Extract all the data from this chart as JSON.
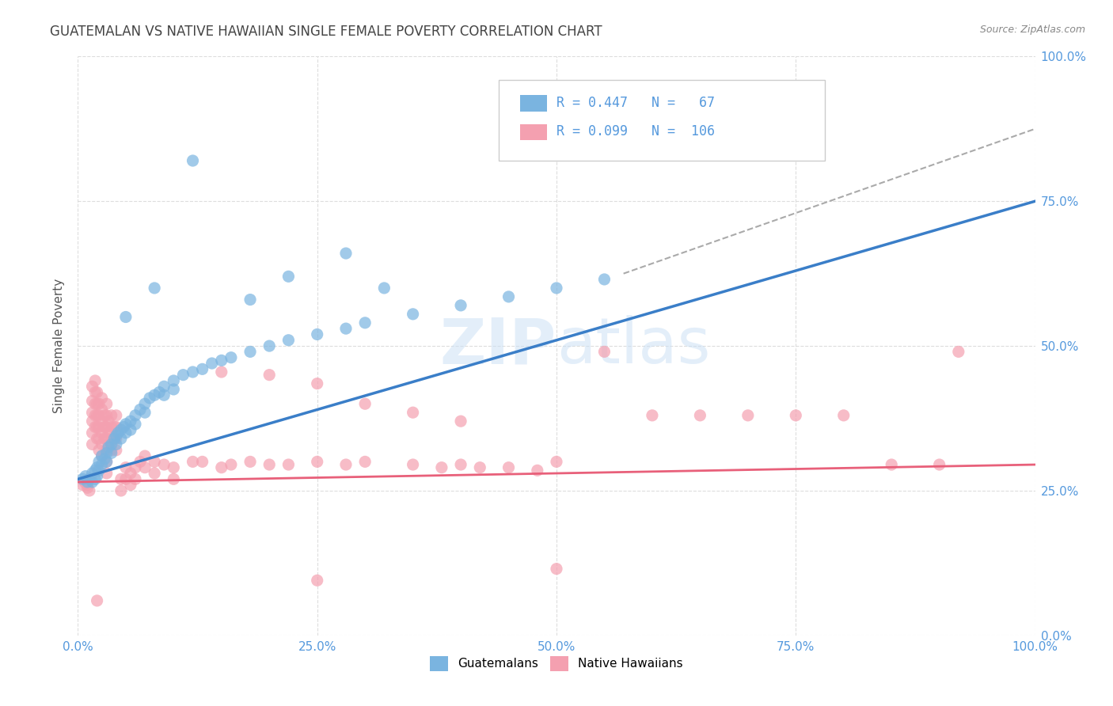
{
  "title": "GUATEMALAN VS NATIVE HAWAIIAN SINGLE FEMALE POVERTY CORRELATION CHART",
  "source": "Source: ZipAtlas.com",
  "ylabel": "Single Female Poverty",
  "watermark_line1": "ZIP",
  "watermark_line2": "atlas",
  "legend_guat_R": "0.447",
  "legend_guat_N": "67",
  "legend_haw_R": "0.099",
  "legend_haw_N": "106",
  "guatemalan_color": "#7ab4e0",
  "native_hawaiian_color": "#f4a0b0",
  "trend_guat_color": "#3a7ec8",
  "trend_haw_color": "#e8607a",
  "dashed_color": "#aaaaaa",
  "background_color": "#ffffff",
  "grid_color": "#dddddd",
  "tick_color": "#5599dd",
  "title_color": "#444444",
  "source_color": "#888888",
  "ylabel_color": "#555555",
  "guatemalan_scatter": [
    [
      0.005,
      0.27
    ],
    [
      0.008,
      0.275
    ],
    [
      0.01,
      0.265
    ],
    [
      0.012,
      0.27
    ],
    [
      0.015,
      0.28
    ],
    [
      0.015,
      0.265
    ],
    [
      0.018,
      0.285
    ],
    [
      0.018,
      0.27
    ],
    [
      0.02,
      0.29
    ],
    [
      0.02,
      0.275
    ],
    [
      0.022,
      0.3
    ],
    [
      0.022,
      0.285
    ],
    [
      0.025,
      0.31
    ],
    [
      0.025,
      0.295
    ],
    [
      0.028,
      0.305
    ],
    [
      0.03,
      0.315
    ],
    [
      0.03,
      0.3
    ],
    [
      0.032,
      0.325
    ],
    [
      0.035,
      0.33
    ],
    [
      0.035,
      0.315
    ],
    [
      0.038,
      0.34
    ],
    [
      0.04,
      0.345
    ],
    [
      0.04,
      0.33
    ],
    [
      0.042,
      0.35
    ],
    [
      0.045,
      0.355
    ],
    [
      0.045,
      0.34
    ],
    [
      0.048,
      0.36
    ],
    [
      0.05,
      0.365
    ],
    [
      0.05,
      0.35
    ],
    [
      0.055,
      0.37
    ],
    [
      0.055,
      0.355
    ],
    [
      0.06,
      0.38
    ],
    [
      0.06,
      0.365
    ],
    [
      0.065,
      0.39
    ],
    [
      0.07,
      0.4
    ],
    [
      0.07,
      0.385
    ],
    [
      0.075,
      0.41
    ],
    [
      0.08,
      0.415
    ],
    [
      0.085,
      0.42
    ],
    [
      0.09,
      0.43
    ],
    [
      0.09,
      0.415
    ],
    [
      0.1,
      0.44
    ],
    [
      0.1,
      0.425
    ],
    [
      0.11,
      0.45
    ],
    [
      0.12,
      0.455
    ],
    [
      0.13,
      0.46
    ],
    [
      0.14,
      0.47
    ],
    [
      0.15,
      0.475
    ],
    [
      0.16,
      0.48
    ],
    [
      0.18,
      0.49
    ],
    [
      0.2,
      0.5
    ],
    [
      0.22,
      0.51
    ],
    [
      0.25,
      0.52
    ],
    [
      0.28,
      0.53
    ],
    [
      0.3,
      0.54
    ],
    [
      0.35,
      0.555
    ],
    [
      0.4,
      0.57
    ],
    [
      0.45,
      0.585
    ],
    [
      0.5,
      0.6
    ],
    [
      0.55,
      0.615
    ],
    [
      0.12,
      0.82
    ],
    [
      0.28,
      0.66
    ],
    [
      0.22,
      0.62
    ],
    [
      0.32,
      0.6
    ],
    [
      0.08,
      0.6
    ],
    [
      0.18,
      0.58
    ],
    [
      0.05,
      0.55
    ]
  ],
  "native_hawaiian_scatter": [
    [
      0.005,
      0.26
    ],
    [
      0.007,
      0.265
    ],
    [
      0.01,
      0.255
    ],
    [
      0.01,
      0.26
    ],
    [
      0.012,
      0.25
    ],
    [
      0.012,
      0.27
    ],
    [
      0.015,
      0.43
    ],
    [
      0.015,
      0.405
    ],
    [
      0.015,
      0.385
    ],
    [
      0.015,
      0.37
    ],
    [
      0.015,
      0.35
    ],
    [
      0.015,
      0.33
    ],
    [
      0.018,
      0.44
    ],
    [
      0.018,
      0.42
    ],
    [
      0.018,
      0.4
    ],
    [
      0.018,
      0.38
    ],
    [
      0.018,
      0.36
    ],
    [
      0.02,
      0.42
    ],
    [
      0.02,
      0.4
    ],
    [
      0.02,
      0.38
    ],
    [
      0.02,
      0.36
    ],
    [
      0.02,
      0.34
    ],
    [
      0.022,
      0.4
    ],
    [
      0.022,
      0.38
    ],
    [
      0.022,
      0.36
    ],
    [
      0.022,
      0.34
    ],
    [
      0.022,
      0.32
    ],
    [
      0.025,
      0.41
    ],
    [
      0.025,
      0.39
    ],
    [
      0.025,
      0.37
    ],
    [
      0.025,
      0.35
    ],
    [
      0.025,
      0.33
    ],
    [
      0.025,
      0.31
    ],
    [
      0.028,
      0.38
    ],
    [
      0.028,
      0.36
    ],
    [
      0.028,
      0.34
    ],
    [
      0.03,
      0.4
    ],
    [
      0.03,
      0.38
    ],
    [
      0.03,
      0.36
    ],
    [
      0.03,
      0.34
    ],
    [
      0.03,
      0.32
    ],
    [
      0.03,
      0.3
    ],
    [
      0.03,
      0.28
    ],
    [
      0.032,
      0.37
    ],
    [
      0.032,
      0.35
    ],
    [
      0.032,
      0.33
    ],
    [
      0.035,
      0.38
    ],
    [
      0.035,
      0.36
    ],
    [
      0.035,
      0.34
    ],
    [
      0.035,
      0.32
    ],
    [
      0.038,
      0.36
    ],
    [
      0.038,
      0.34
    ],
    [
      0.04,
      0.38
    ],
    [
      0.04,
      0.36
    ],
    [
      0.04,
      0.34
    ],
    [
      0.04,
      0.32
    ],
    [
      0.045,
      0.27
    ],
    [
      0.045,
      0.25
    ],
    [
      0.05,
      0.29
    ],
    [
      0.05,
      0.27
    ],
    [
      0.055,
      0.28
    ],
    [
      0.055,
      0.26
    ],
    [
      0.06,
      0.29
    ],
    [
      0.06,
      0.27
    ],
    [
      0.065,
      0.3
    ],
    [
      0.07,
      0.31
    ],
    [
      0.07,
      0.29
    ],
    [
      0.08,
      0.3
    ],
    [
      0.08,
      0.28
    ],
    [
      0.09,
      0.295
    ],
    [
      0.1,
      0.29
    ],
    [
      0.1,
      0.27
    ],
    [
      0.12,
      0.3
    ],
    [
      0.13,
      0.3
    ],
    [
      0.15,
      0.29
    ],
    [
      0.16,
      0.295
    ],
    [
      0.18,
      0.3
    ],
    [
      0.2,
      0.295
    ],
    [
      0.22,
      0.295
    ],
    [
      0.25,
      0.3
    ],
    [
      0.28,
      0.295
    ],
    [
      0.3,
      0.3
    ],
    [
      0.35,
      0.295
    ],
    [
      0.4,
      0.295
    ],
    [
      0.5,
      0.3
    ],
    [
      0.55,
      0.49
    ],
    [
      0.6,
      0.38
    ],
    [
      0.65,
      0.38
    ],
    [
      0.7,
      0.38
    ],
    [
      0.75,
      0.38
    ],
    [
      0.8,
      0.38
    ],
    [
      0.85,
      0.295
    ],
    [
      0.9,
      0.295
    ],
    [
      0.92,
      0.49
    ],
    [
      0.15,
      0.455
    ],
    [
      0.2,
      0.45
    ],
    [
      0.25,
      0.435
    ],
    [
      0.3,
      0.4
    ],
    [
      0.35,
      0.385
    ],
    [
      0.4,
      0.37
    ],
    [
      0.38,
      0.29
    ],
    [
      0.42,
      0.29
    ],
    [
      0.45,
      0.29
    ],
    [
      0.48,
      0.285
    ],
    [
      0.02,
      0.06
    ],
    [
      0.25,
      0.095
    ],
    [
      0.5,
      0.115
    ]
  ],
  "trend_guat": [
    0.0,
    0.27,
    1.0,
    0.75
  ],
  "trend_haw": [
    0.0,
    0.265,
    1.0,
    0.295
  ],
  "dashed_ref": [
    0.57,
    0.625,
    1.0,
    0.875
  ],
  "xlim": [
    0.0,
    1.0
  ],
  "ylim": [
    0.0,
    1.0
  ],
  "xticks": [
    0.0,
    0.25,
    0.5,
    0.75,
    1.0
  ],
  "xtick_labels": [
    "0.0%",
    "25.0%",
    "50.0%",
    "75.0%",
    "100.0%"
  ],
  "yticks": [
    0.0,
    0.25,
    0.5,
    0.75,
    1.0
  ],
  "ytick_labels": [
    "0.0%",
    "25.0%",
    "50.0%",
    "75.0%",
    "100.0%"
  ]
}
